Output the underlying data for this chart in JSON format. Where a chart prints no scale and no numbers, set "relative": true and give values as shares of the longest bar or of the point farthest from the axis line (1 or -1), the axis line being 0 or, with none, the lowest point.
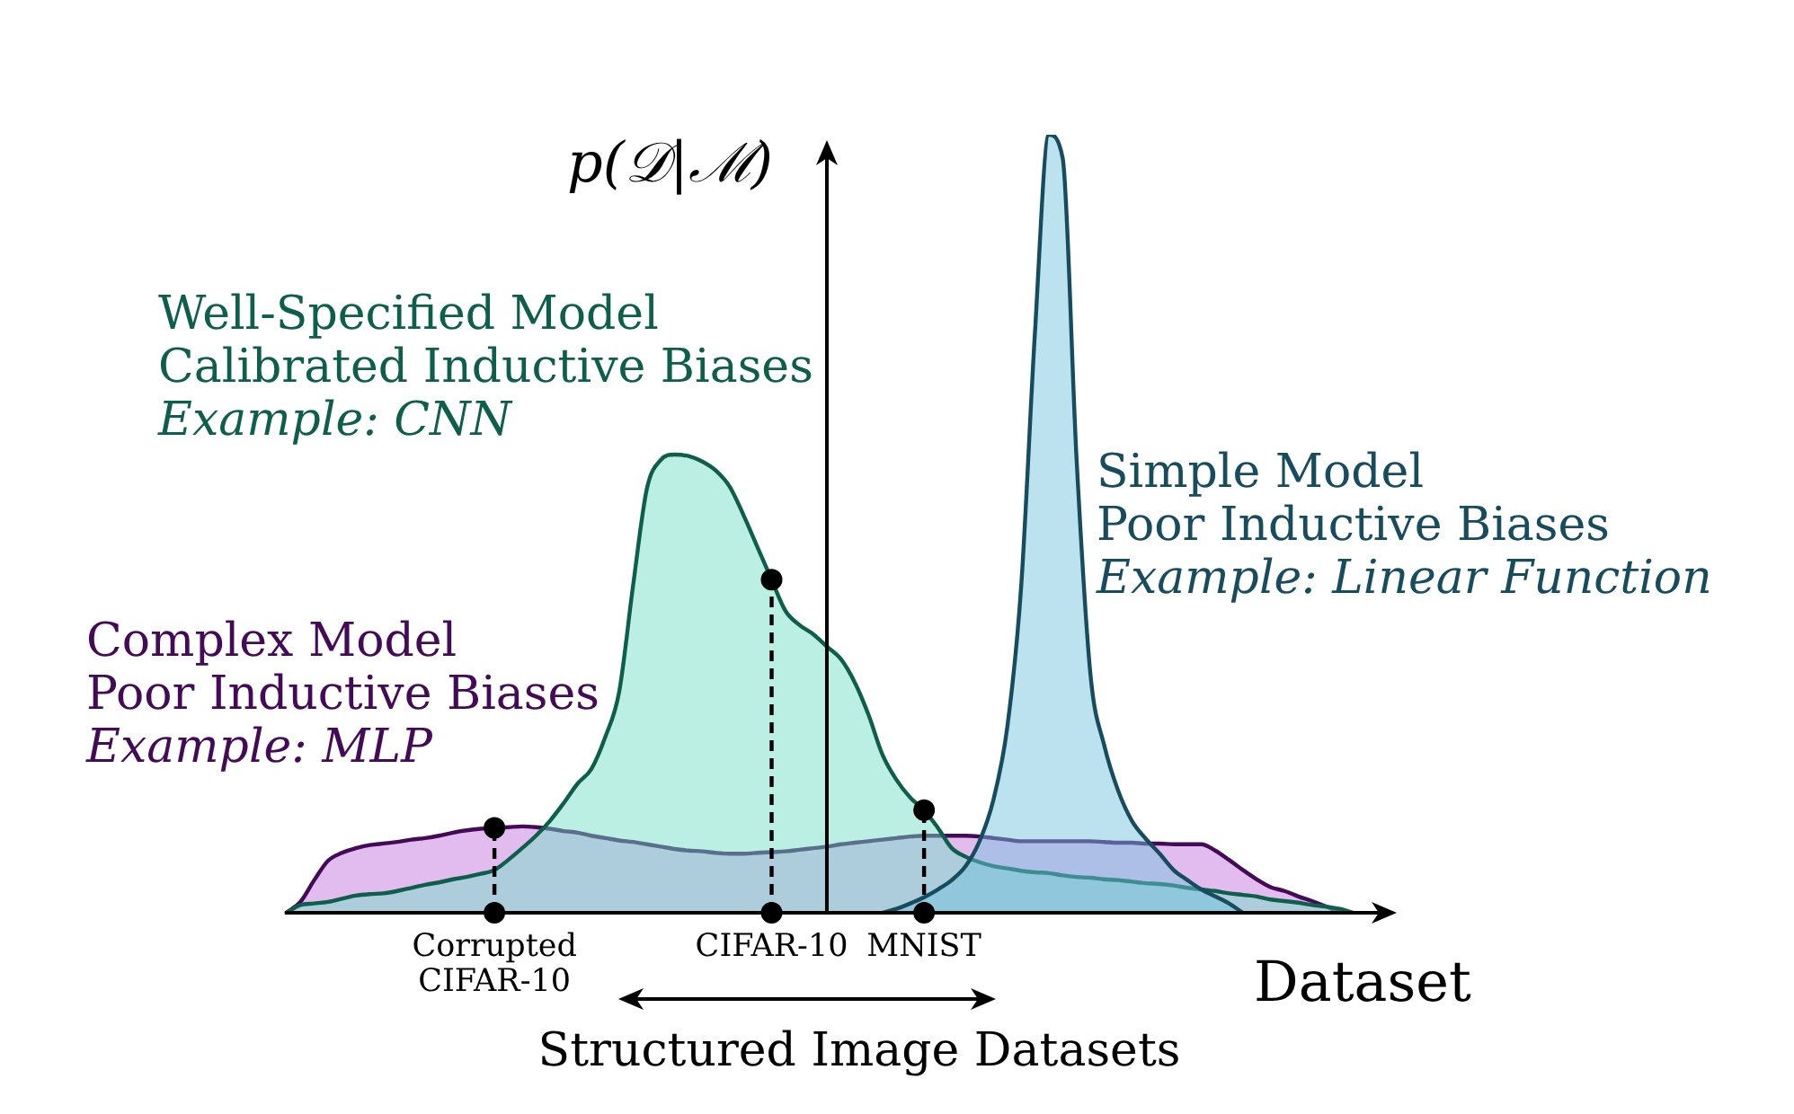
{
  "chart_data": {
    "type": "area",
    "relative": true,
    "xlabel": "Dataset",
    "ylabel": "p(𝒟|ℳ)",
    "annotations": [
      "Structured Image Datasets"
    ],
    "categories": [
      null,
      null,
      null,
      null,
      null,
      null,
      null,
      null,
      null,
      null,
      null,
      null,
      null,
      null,
      null,
      "Corrupted CIFAR-10",
      null,
      null,
      null,
      null,
      null,
      null,
      null,
      null,
      null,
      null,
      null,
      null,
      null,
      null,
      null,
      null,
      null,
      null,
      null,
      "CIFAR-10",
      null,
      null,
      null,
      null,
      null,
      null,
      null,
      null,
      null,
      null,
      "MNIST",
      null,
      null,
      null,
      null,
      null,
      null,
      null,
      null,
      null,
      null,
      null,
      null,
      null,
      null,
      null,
      null,
      null,
      null,
      null,
      null,
      null,
      null,
      null,
      null,
      null,
      null,
      null,
      null,
      null,
      null,
      null,
      null,
      null
    ],
    "series": [
      {
        "name": "Complex Model\nPoor Inductive Biases\nExample: MLP",
        "color": "#440a57",
        "values": [
          0,
          0.014,
          0.042,
          0.067,
          0.077,
          0.083,
          0.087,
          0.089,
          0.091,
          0.094,
          0.096,
          0.099,
          0.103,
          0.106,
          0.108,
          0.109,
          0.11,
          0.111,
          0.11,
          0.108,
          0.105,
          0.103,
          0.099,
          0.096,
          0.093,
          0.091,
          0.088,
          0.085,
          0.082,
          0.08,
          0.079,
          0.077,
          0.076,
          0.076,
          0.077,
          0.078,
          0.079,
          0.081,
          0.083,
          0.085,
          0.088,
          0.09,
          0.092,
          0.094,
          0.096,
          0.098,
          0.099,
          0.099,
          0.099,
          0.099,
          0.098,
          0.096,
          0.094,
          0.092,
          0.092,
          0.092,
          0.092,
          0.092,
          0.092,
          0.091,
          0.09,
          0.09,
          0.089,
          0.089,
          0.088,
          0.088,
          0.088,
          0.08,
          0.068,
          0.055,
          0.043,
          0.033,
          0.028,
          0.021,
          0.015,
          0.008,
          0,
          null,
          null,
          null
        ]
      },
      {
        "name": "Well-Specified Model\nCalibrated Inductive Biases\nExample: CNN",
        "color": "#0e5e4c",
        "values": [
          0,
          0.01,
          0.012,
          0.014,
          0.018,
          0.022,
          0.024,
          0.025,
          0.028,
          0.032,
          0.036,
          0.039,
          0.043,
          0.046,
          0.05,
          0.055,
          0.068,
          0.083,
          0.099,
          0.118,
          0.141,
          0.166,
          0.185,
          0.226,
          0.284,
          0.42,
          0.545,
          0.582,
          0.589,
          0.587,
          0.58,
          0.568,
          0.547,
          0.51,
          0.469,
          0.428,
          0.388,
          0.37,
          0.358,
          0.342,
          0.326,
          0.296,
          0.254,
          0.203,
          0.171,
          0.148,
          0.132,
          0.109,
          0.083,
          0.072,
          0.065,
          0.06,
          0.057,
          0.054,
          0.052,
          0.051,
          0.048,
          0.046,
          0.045,
          0.043,
          0.042,
          0.04,
          0.038,
          0.037,
          0.035,
          0.032,
          0.03,
          0.028,
          0.025,
          0.023,
          0.021,
          0.017,
          0.015,
          0.013,
          0.01,
          0.008,
          0.005,
          0,
          null,
          null
        ]
      },
      {
        "name": "Simple Model\nPoor Inductive Biases\nExample: Linear Function",
        "color": "#164c5e",
        "values": [
          null,
          null,
          null,
          null,
          null,
          null,
          null,
          null,
          null,
          null,
          null,
          null,
          null,
          null,
          null,
          null,
          null,
          null,
          null,
          null,
          null,
          null,
          null,
          null,
          null,
          null,
          null,
          null,
          null,
          null,
          null,
          null,
          null,
          null,
          null,
          null,
          null,
          null,
          null,
          null,
          null,
          null,
          null,
          0,
          0.005,
          0.012,
          0.02,
          0.03,
          0.042,
          0.06,
          0.092,
          0.145,
          0.238,
          0.418,
          0.746,
          1,
          0.97,
          0.584,
          0.307,
          0.215,
          0.157,
          0.118,
          0.095,
          0.076,
          0.055,
          0.042,
          0.03,
          0.021,
          0.012,
          0,
          null,
          null,
          null,
          null,
          null,
          null,
          null,
          null,
          null,
          null
        ]
      },
      {
        "type": "lollipop",
        "x": [
          "Corrupted CIFAR-10",
          "CIFAR-10",
          "MNIST"
        ],
        "values": [
          0.109,
          0.428,
          0.132
        ],
        "color": "#000000",
        "line_style": "dashed",
        "marker": "circle"
      },
      {
        "type": "scatter",
        "x": [
          "Corrupted CIFAR-10",
          "CIFAR-10",
          "MNIST"
        ],
        "values": [
          0,
          0,
          0
        ],
        "color": "#000000",
        "marker": "circle"
      }
    ]
  }
}
